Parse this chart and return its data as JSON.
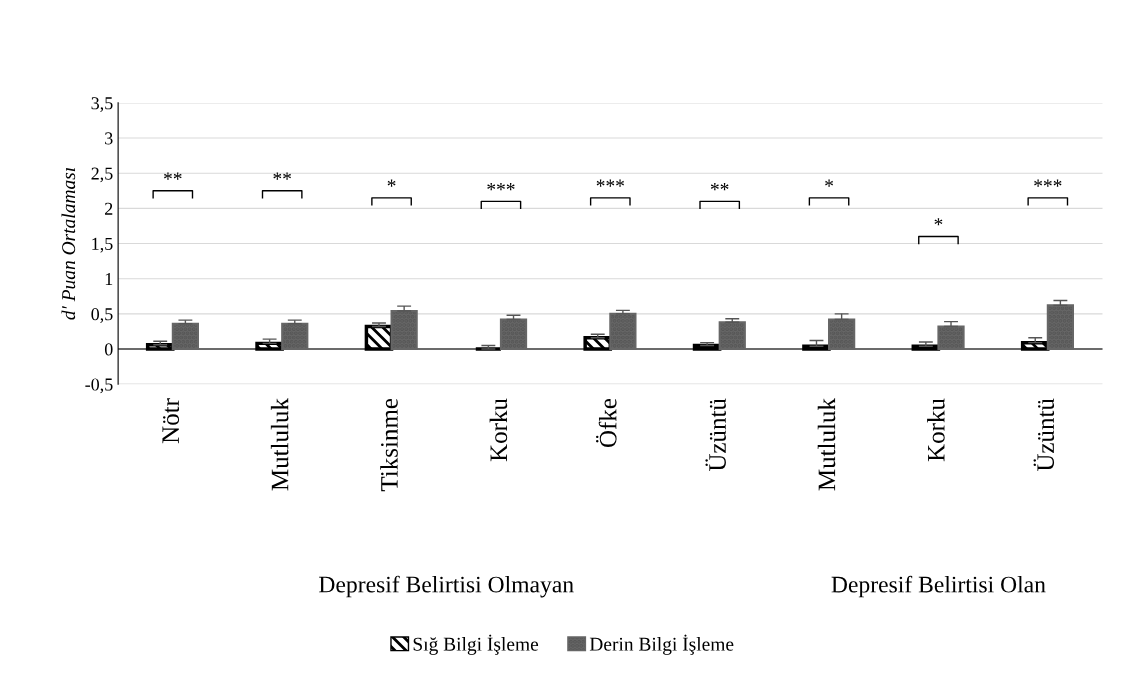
{
  "chart_data": {
    "type": "bar",
    "ylabel": "d′ Puan Ortalaması",
    "categories": [
      "Nötr",
      "Mutluluk",
      "Tiksinme",
      "Korku",
      "Öfke",
      "Üzüntü",
      "Mutluluk",
      "Korku",
      "Üzüntü"
    ],
    "series": [
      {
        "name": "Sığ Bilgi İşleme",
        "color": "#000000",
        "values": [
          0.06,
          0.08,
          0.32,
          0.0,
          0.16,
          0.05,
          0.04,
          0.04,
          0.09
        ],
        "errors": [
          0.05,
          0.06,
          0.05,
          0.05,
          0.05,
          0.04,
          0.08,
          0.06,
          0.07
        ]
      },
      {
        "name": "Derin Bilgi İşleme",
        "color": "#666666",
        "values": [
          0.36,
          0.36,
          0.54,
          0.42,
          0.5,
          0.38,
          0.42,
          0.32,
          0.62
        ],
        "errors": [
          0.05,
          0.05,
          0.07,
          0.06,
          0.05,
          0.05,
          0.08,
          0.07,
          0.07
        ]
      }
    ],
    "ylim": [
      -0.5,
      3.5
    ],
    "yticks": [
      {
        "value": -0.5,
        "label": "-0,5"
      },
      0,
      {
        "value": 0.5,
        "label": "0,5"
      },
      1,
      {
        "value": 1.5,
        "label": "1,5"
      },
      2,
      {
        "value": 2.5,
        "label": "2,5"
      },
      3,
      {
        "value": 3.5,
        "label": "3,5"
      }
    ],
    "grid": "y",
    "legend": "bottom",
    "annotations": [
      "**",
      "**",
      "*",
      "***",
      "***",
      "**",
      "*",
      "*",
      "***",
      "Depresif Belirtisi Olmayan",
      "Depresif Belirtisi Olan"
    ]
  }
}
